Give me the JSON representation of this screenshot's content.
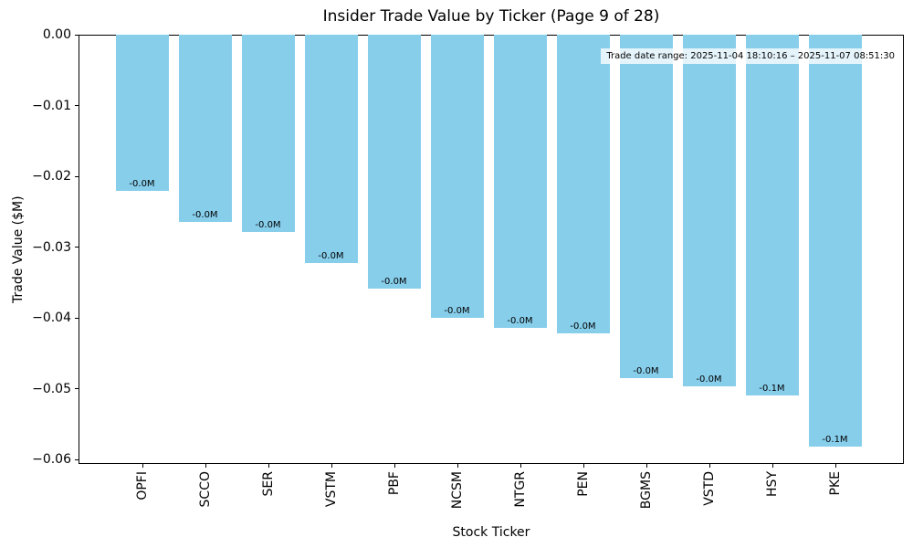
{
  "chart_data": {
    "type": "bar",
    "title": "Insider Trade Value by Ticker (Page 9 of 28)",
    "xlabel": "Stock Ticker",
    "ylabel": "Trade Value ($M)",
    "categories": [
      "OPFI",
      "SCCO",
      "SER",
      "VSTM",
      "PBF",
      "NCSM",
      "NTGR",
      "PEN",
      "BGMS",
      "VSTD",
      "HSY",
      "PKE"
    ],
    "values": [
      -0.0221,
      -0.0265,
      -0.0279,
      -0.0323,
      -0.0359,
      -0.04,
      -0.0414,
      -0.0422,
      -0.0485,
      -0.0497,
      -0.051,
      -0.0582
    ],
    "bar_labels": [
      "-0.0M",
      "-0.0M",
      "-0.0M",
      "-0.0M",
      "-0.0M",
      "-0.0M",
      "-0.0M",
      "-0.0M",
      "-0.0M",
      "-0.0M",
      "-0.1M",
      "-0.1M"
    ],
    "yticks": {
      "values": [
        0,
        -0.01,
        -0.02,
        -0.03,
        -0.04,
        -0.05,
        -0.06
      ],
      "labels": [
        "0.00",
        "−0.01",
        "−0.02",
        "−0.03",
        "−0.04",
        "−0.05",
        "−0.06"
      ]
    },
    "ylim": [
      -0.0606,
      0
    ],
    "grid": false,
    "legend_position": "none",
    "bar_color": "#87CEEB",
    "annotation": "Trade date range: 2025-11-04 18:10:16 – 2025-11-07 08:51:30"
  }
}
